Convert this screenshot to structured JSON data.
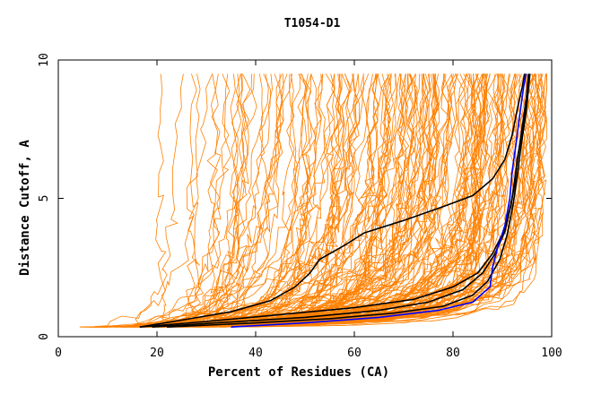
{
  "chart_data": {
    "type": "line",
    "title": "T1054-D1",
    "xlabel": "Percent of Residues (CA)",
    "ylabel": "Distance Cutoff, A",
    "xlim": [
      0,
      100
    ],
    "ylim": [
      0,
      10
    ],
    "xticks": [
      "0",
      "20",
      "40",
      "60",
      "80",
      "100"
    ],
    "yticks": [
      "0",
      "5",
      "10"
    ],
    "grid": false,
    "colors": {
      "background_models": "#ff8000",
      "highlight_black": "#000000",
      "highlight_blue": "#0000ff",
      "axes": "#000000"
    },
    "highlight_series": [
      {
        "color": "#000000",
        "points": [
          [
            16.5,
            0.35
          ],
          [
            25,
            0.6
          ],
          [
            35,
            0.9
          ],
          [
            43,
            1.3
          ],
          [
            48,
            1.8
          ],
          [
            51,
            2.3
          ],
          [
            53,
            2.8
          ],
          [
            58,
            3.3
          ],
          [
            62,
            3.75
          ],
          [
            70,
            4.2
          ],
          [
            78,
            4.7
          ],
          [
            84,
            5.1
          ],
          [
            88,
            5.7
          ],
          [
            90.5,
            6.4
          ],
          [
            92,
            7.3
          ],
          [
            93,
            8.2
          ],
          [
            94,
            9.0
          ],
          [
            94.5,
            9.5
          ]
        ]
      },
      {
        "color": "#000000",
        "points": [
          [
            16.5,
            0.35
          ],
          [
            30,
            0.55
          ],
          [
            45,
            0.8
          ],
          [
            60,
            1.05
          ],
          [
            72,
            1.35
          ],
          [
            80,
            1.8
          ],
          [
            85,
            2.3
          ],
          [
            88,
            3.0
          ],
          [
            90,
            3.7
          ],
          [
            91.5,
            4.6
          ],
          [
            92.5,
            5.5
          ],
          [
            93,
            6.4
          ],
          [
            94,
            7.4
          ],
          [
            94.8,
            8.4
          ],
          [
            95.3,
            9.5
          ]
        ]
      },
      {
        "color": "#000000",
        "points": [
          [
            19,
            0.35
          ],
          [
            32,
            0.5
          ],
          [
            50,
            0.7
          ],
          [
            65,
            0.95
          ],
          [
            75,
            1.25
          ],
          [
            82,
            1.7
          ],
          [
            86,
            2.3
          ],
          [
            88.5,
            3.0
          ],
          [
            90.5,
            3.8
          ],
          [
            91.8,
            4.8
          ],
          [
            92.6,
            5.8
          ],
          [
            93.4,
            6.8
          ],
          [
            94.2,
            7.8
          ],
          [
            95,
            8.8
          ],
          [
            95.5,
            9.5
          ]
        ]
      },
      {
        "color": "#000000",
        "points": [
          [
            22,
            0.35
          ],
          [
            40,
            0.5
          ],
          [
            55,
            0.65
          ],
          [
            68,
            0.85
          ],
          [
            78,
            1.1
          ],
          [
            84,
            1.5
          ],
          [
            87,
            2.0
          ],
          [
            89.5,
            2.8
          ],
          [
            91,
            3.7
          ],
          [
            92.2,
            4.8
          ],
          [
            93,
            5.8
          ],
          [
            93.8,
            6.9
          ],
          [
            94.8,
            8.1
          ],
          [
            95.6,
            9.5
          ]
        ]
      },
      {
        "color": "#0000ff",
        "points": [
          [
            35,
            0.35
          ],
          [
            50,
            0.5
          ],
          [
            65,
            0.7
          ],
          [
            77,
            0.95
          ],
          [
            84,
            1.25
          ],
          [
            87.5,
            1.8
          ],
          [
            88,
            2.5
          ],
          [
            89,
            3.2
          ],
          [
            90.5,
            4.0
          ],
          [
            91.5,
            5.0
          ],
          [
            92,
            6.0
          ],
          [
            92.8,
            7.0
          ],
          [
            93.5,
            8.0
          ],
          [
            94.3,
            9.0
          ],
          [
            94.8,
            9.5
          ]
        ]
      }
    ]
  }
}
